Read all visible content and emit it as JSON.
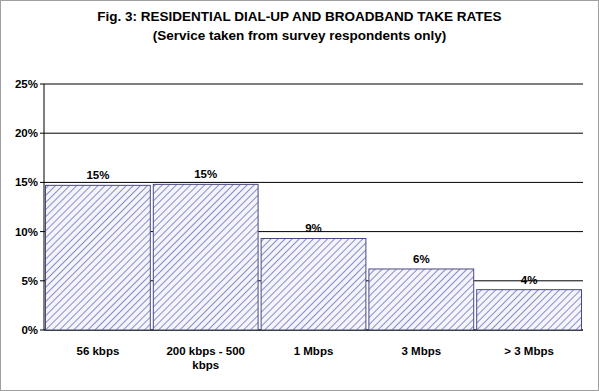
{
  "chart_data": {
    "type": "bar",
    "title": "Fig. 3: RESIDENTIAL DIAL-UP AND BROADBAND TAKE RATES",
    "subtitle": "(Service taken from survey respondents only)",
    "categories": [
      "56 kbps",
      "200 kbps - 500 kbps",
      "1 Mbps",
      "3 Mbps",
      "> 3 Mbps"
    ],
    "values": [
      14.7,
      14.8,
      9.3,
      6.2,
      4.1
    ],
    "value_labels": [
      "15%",
      "15%",
      "9%",
      "6%",
      "4%"
    ],
    "color": "#8c8cc8",
    "ylim": [
      0,
      25
    ],
    "yticks": [
      {
        "value": 0,
        "label": "0%"
      },
      {
        "value": 5,
        "label": "5%"
      },
      {
        "value": 10,
        "label": "10%"
      },
      {
        "value": 15,
        "label": "15%"
      },
      {
        "value": 20,
        "label": "20%"
      },
      {
        "value": 25,
        "label": "25%"
      }
    ],
    "grid": true,
    "data_labels": true
  }
}
